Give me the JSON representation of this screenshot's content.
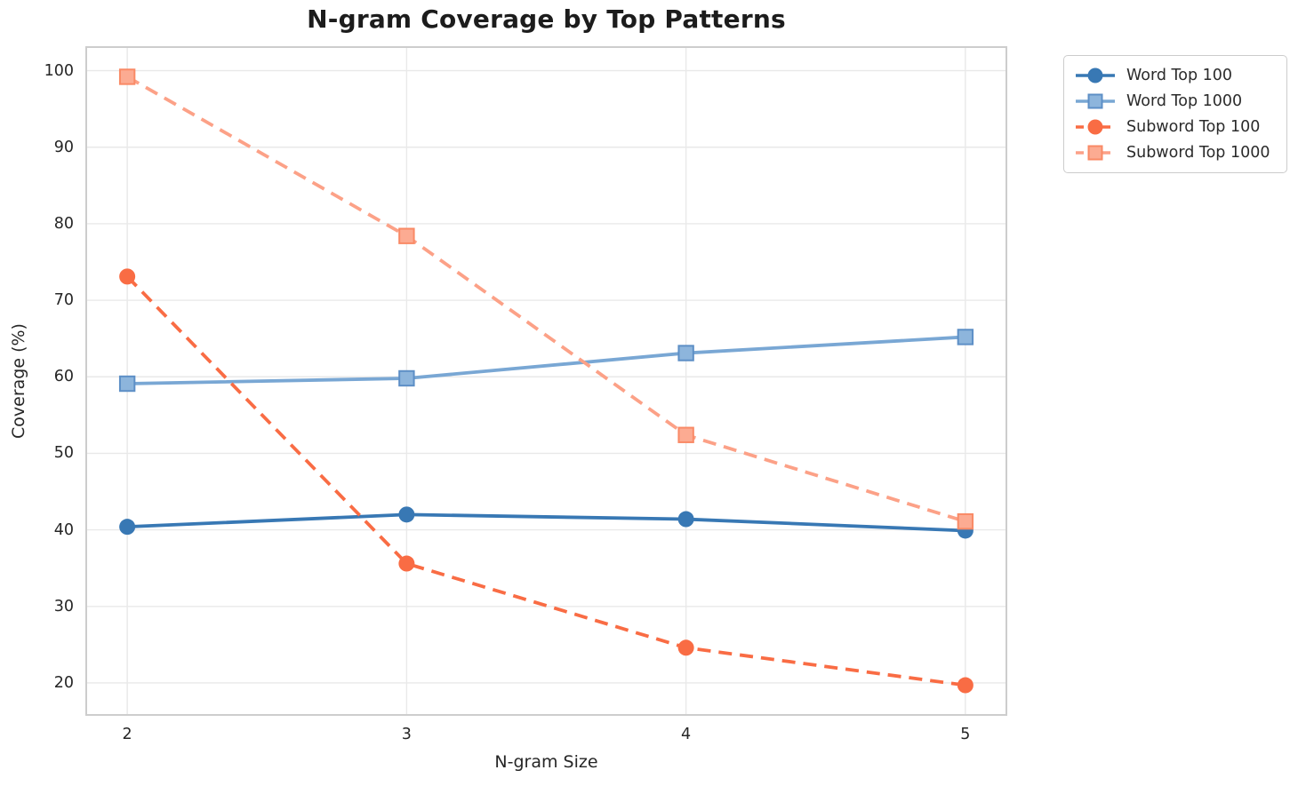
{
  "chart_data": {
    "type": "line",
    "title": "N-gram Coverage by Top Patterns",
    "xlabel": "N-gram Size",
    "ylabel": "Coverage (%)",
    "x": [
      2,
      3,
      4,
      5
    ],
    "xlim": [
      1.85,
      5.15
    ],
    "ylim": [
      15.7,
      103.2
    ],
    "xticks": [
      2,
      3,
      4,
      5
    ],
    "yticks": [
      20,
      30,
      40,
      50,
      60,
      70,
      80,
      90,
      100
    ],
    "grid": true,
    "legend_position": "outside-top-right",
    "series": [
      {
        "name": "Word Top 100",
        "values": [
          40.4,
          42.0,
          41.4,
          39.9
        ],
        "color": "#3878b4",
        "marker": "circle",
        "marker_fill": "#3878b4",
        "marker_edge": "#3878b4",
        "dash": false
      },
      {
        "name": "Word Top 1000",
        "values": [
          59.1,
          59.8,
          63.1,
          65.2
        ],
        "color": "#79a7d4",
        "marker": "square",
        "marker_fill": "#8db5dc",
        "marker_edge": "#5d8fc6",
        "dash": false
      },
      {
        "name": "Subword Top 100",
        "values": [
          73.1,
          35.6,
          24.6,
          19.7
        ],
        "color": "#f96c44",
        "marker": "circle",
        "marker_fill": "#f96c44",
        "marker_edge": "#f96c44",
        "dash": true
      },
      {
        "name": "Subword Top 1000",
        "values": [
          99.2,
          78.4,
          52.4,
          41.1
        ],
        "color": "#fca187",
        "marker": "square",
        "marker_fill": "#fcab92",
        "marker_edge": "#f98a66",
        "dash": true
      }
    ],
    "colors": {
      "grid": "#e9e9e9",
      "spine": "#cdcdcd",
      "text": "#262626"
    }
  }
}
